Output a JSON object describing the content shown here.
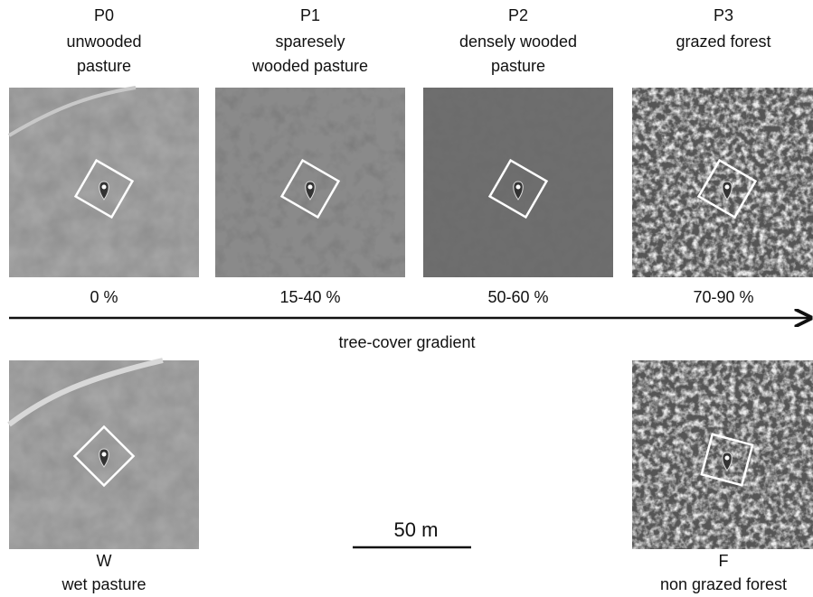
{
  "panels": [
    {
      "code": "P0",
      "label": [
        "unwooded",
        "pasture"
      ],
      "cover": "0 %"
    },
    {
      "code": "P1",
      "label": [
        "sparesely",
        "wooded pasture"
      ],
      "cover": "15-40 %"
    },
    {
      "code": "P2",
      "label": [
        "densely wooded",
        "pasture"
      ],
      "cover": "50-60 %"
    },
    {
      "code": "P3",
      "label": [
        "grazed forest"
      ],
      "cover": "70-90 %"
    }
  ],
  "gradient_label": "tree-cover gradient",
  "other_panels": [
    {
      "code": "W",
      "label": [
        "wet pasture"
      ]
    },
    {
      "code": "F",
      "label": [
        "non grazed forest"
      ]
    }
  ],
  "scale_bar": "50 m"
}
